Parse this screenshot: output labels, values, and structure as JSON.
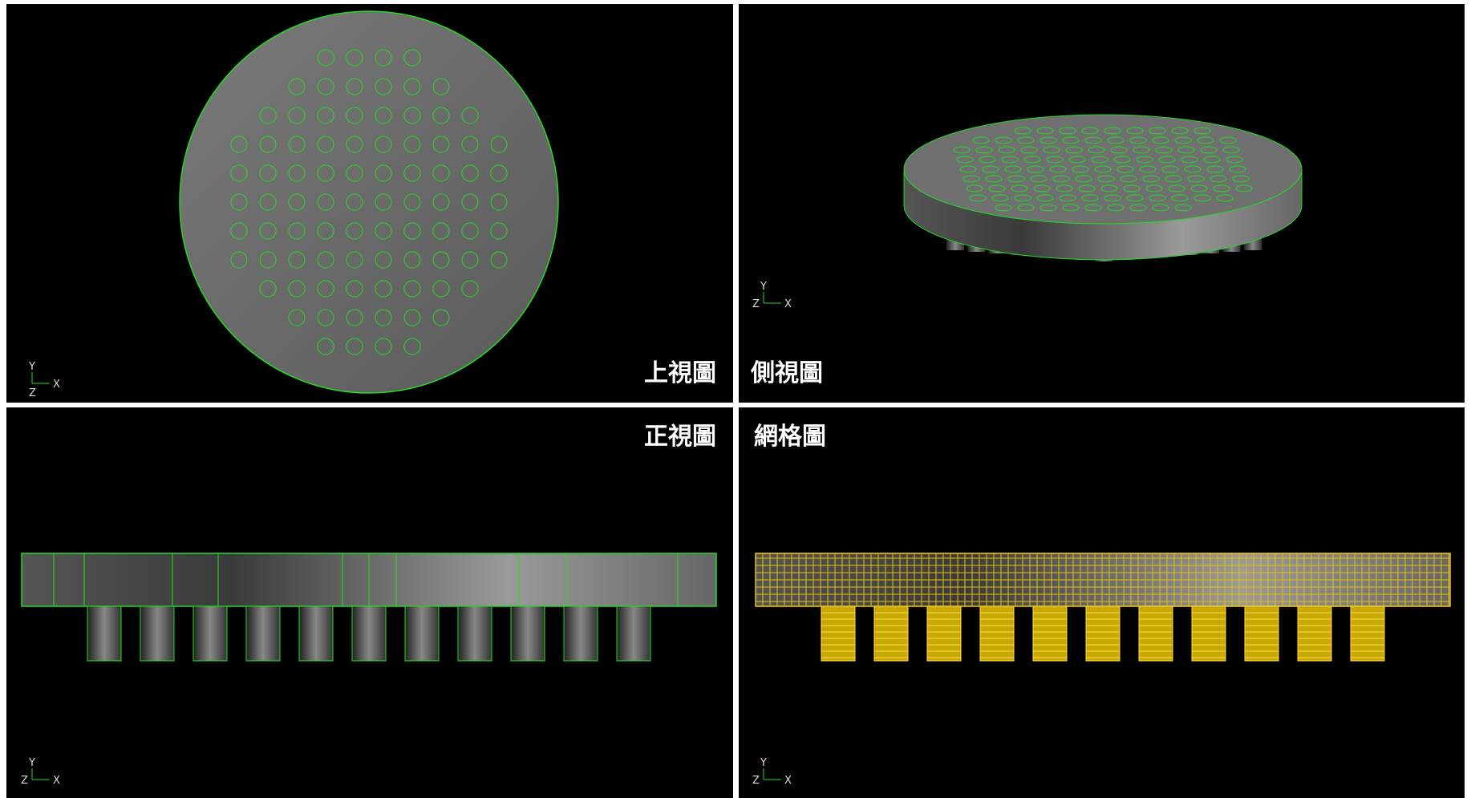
{
  "panels": [
    {
      "label": "上視圖",
      "axes": [
        "Y",
        "X",
        "Z"
      ]
    },
    {
      "label": "側視圖",
      "axes": [
        "Y",
        "Z",
        "X"
      ]
    },
    {
      "label": "正視圖",
      "axes": [
        "Y",
        "Z",
        "X"
      ]
    },
    {
      "label": "網格圖",
      "axes": [
        "Y",
        "Z",
        "X"
      ]
    }
  ]
}
